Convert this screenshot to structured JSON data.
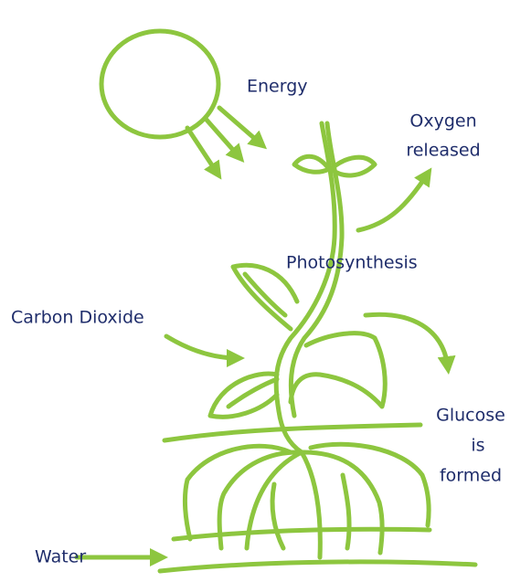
{
  "labels": {
    "energy": "Energy",
    "oxygen": [
      "Oxygen",
      "released"
    ],
    "photosynthesis": "Photosynthesis",
    "carbon_dioxide": "Carbon Dioxide",
    "glucose": [
      "Glucose",
      "is",
      "formed"
    ],
    "water": "Water"
  }
}
